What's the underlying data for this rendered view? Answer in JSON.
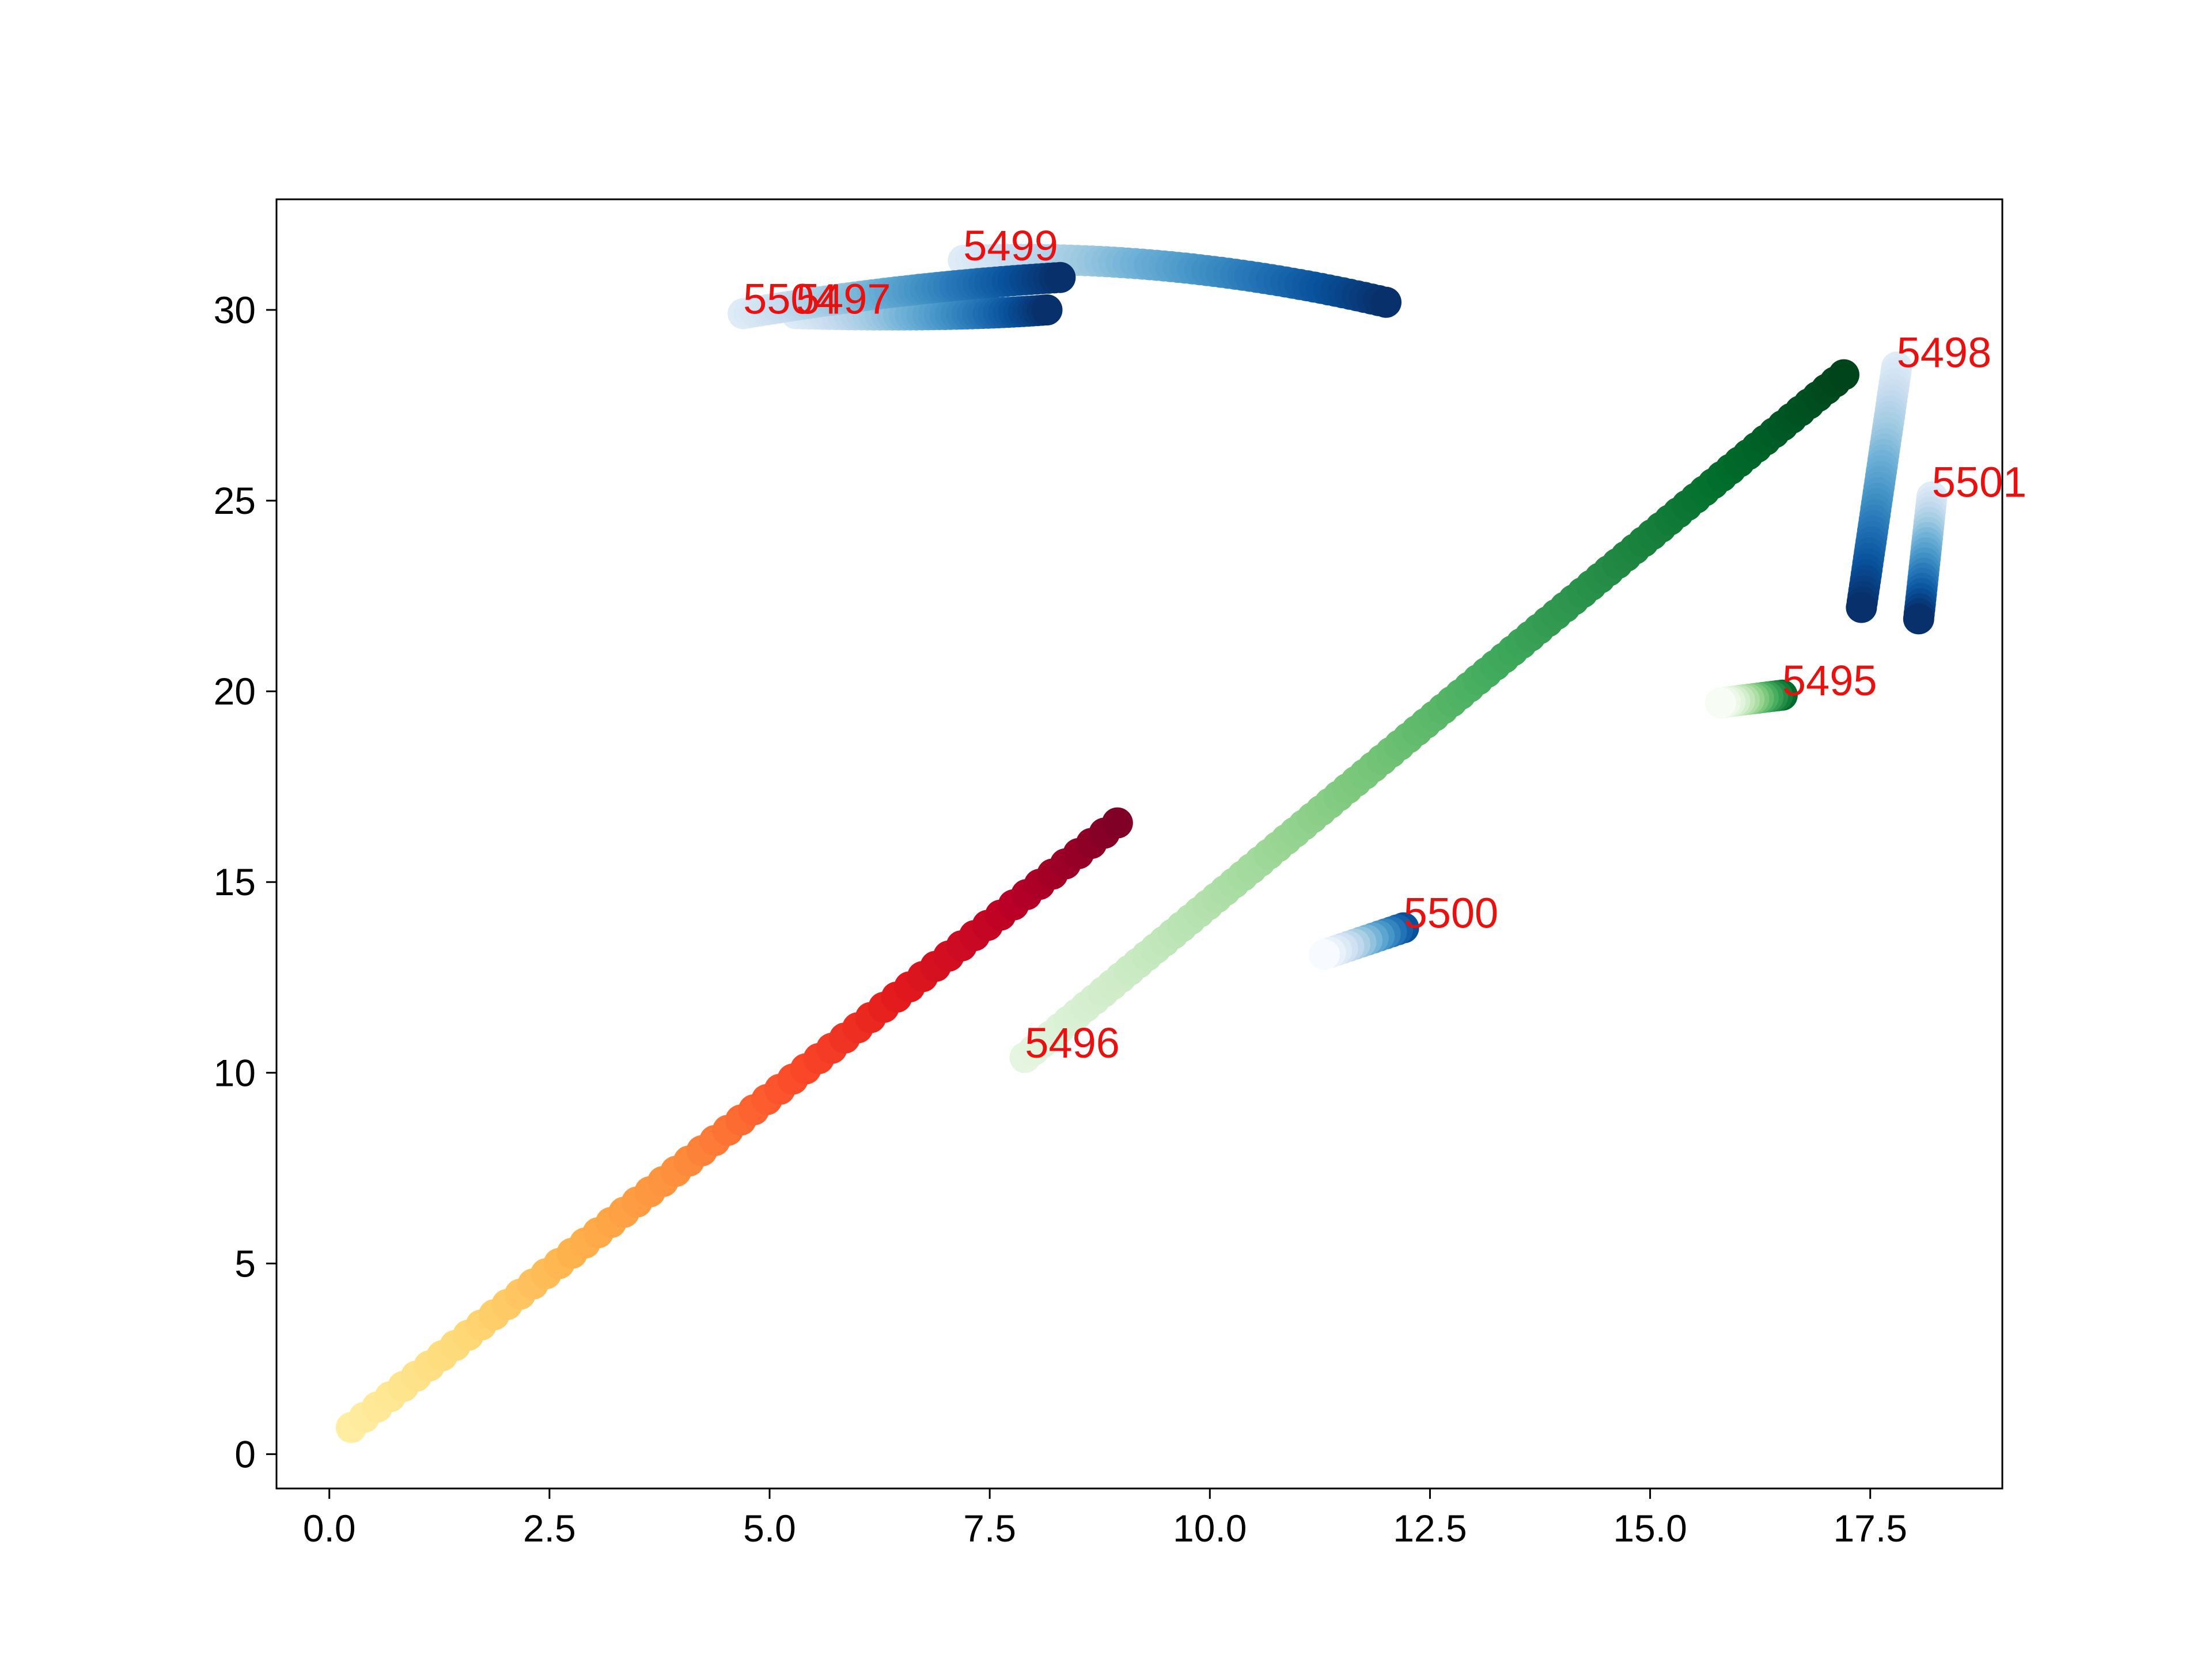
{
  "chart_data": {
    "type": "scatter",
    "title": "",
    "xlabel": "",
    "ylabel": "",
    "xlim": [
      -0.6,
      19.0
    ],
    "ylim": [
      -0.9,
      32.9
    ],
    "grid": false,
    "x_ticks": [
      "0.0",
      "2.5",
      "5.0",
      "7.5",
      "10.0",
      "12.5",
      "15.0",
      "17.5"
    ],
    "y_ticks": [
      "0",
      "5",
      "10",
      "15",
      "20",
      "25",
      "30"
    ],
    "series": [
      {
        "colormap": "YlOrRd",
        "start": [
          0.25,
          0.7
        ],
        "end": [
          8.95,
          16.55
        ],
        "count": 60,
        "shape": "line"
      },
      {
        "name": "5496",
        "colormap": "Greens",
        "start": [
          7.9,
          10.4
        ],
        "end": [
          17.2,
          28.3
        ],
        "count": 95,
        "shape": "line"
      },
      {
        "name": "5495",
        "colormap": "Greens_r",
        "start": [
          16.5,
          19.9
        ],
        "end": [
          15.8,
          19.7
        ],
        "count": 14,
        "shape": "line"
      },
      {
        "name": "5500",
        "colormap": "Blues_r",
        "start": [
          12.2,
          13.8
        ],
        "end": [
          11.3,
          13.1
        ],
        "count": 14,
        "shape": "line"
      },
      {
        "name": "5498",
        "colormap": "Blues",
        "start": [
          17.8,
          28.5
        ],
        "end": [
          17.4,
          22.2
        ],
        "count": 45,
        "shape": "line"
      },
      {
        "name": "5501",
        "colormap": "Blues",
        "start": [
          18.2,
          25.1
        ],
        "end": [
          18.05,
          21.9
        ],
        "count": 25,
        "shape": "line"
      },
      {
        "name": "5497",
        "colormap": "Blues",
        "start": [
          5.3,
          29.9
        ],
        "end": [
          8.15,
          30.0
        ],
        "control": [
          7.0,
          29.8
        ],
        "count": 45,
        "shape": "curve"
      },
      {
        "name": "5499",
        "colormap": "Blues",
        "start": [
          7.2,
          31.3
        ],
        "end": [
          12.0,
          30.2
        ],
        "control": [
          9.6,
          31.5
        ],
        "count": 60,
        "shape": "curve"
      },
      {
        "name": "5504",
        "colormap": "Blues",
        "start": [
          4.7,
          29.9
        ],
        "end": [
          8.3,
          30.85
        ],
        "control": [
          6.5,
          30.6
        ],
        "count": 55,
        "shape": "curve"
      }
    ],
    "annotations": [
      {
        "text": "5495",
        "x": 16.5,
        "y": 19.9
      },
      {
        "text": "5496",
        "x": 7.9,
        "y": 10.4
      },
      {
        "text": "5497",
        "x": 5.3,
        "y": 29.9
      },
      {
        "text": "5498",
        "x": 17.8,
        "y": 28.5
      },
      {
        "text": "5499",
        "x": 7.2,
        "y": 31.3
      },
      {
        "text": "5500",
        "x": 12.2,
        "y": 13.8
      },
      {
        "text": "5501",
        "x": 18.2,
        "y": 25.1
      },
      {
        "text": "5504",
        "x": 4.7,
        "y": 29.9
      }
    ]
  }
}
